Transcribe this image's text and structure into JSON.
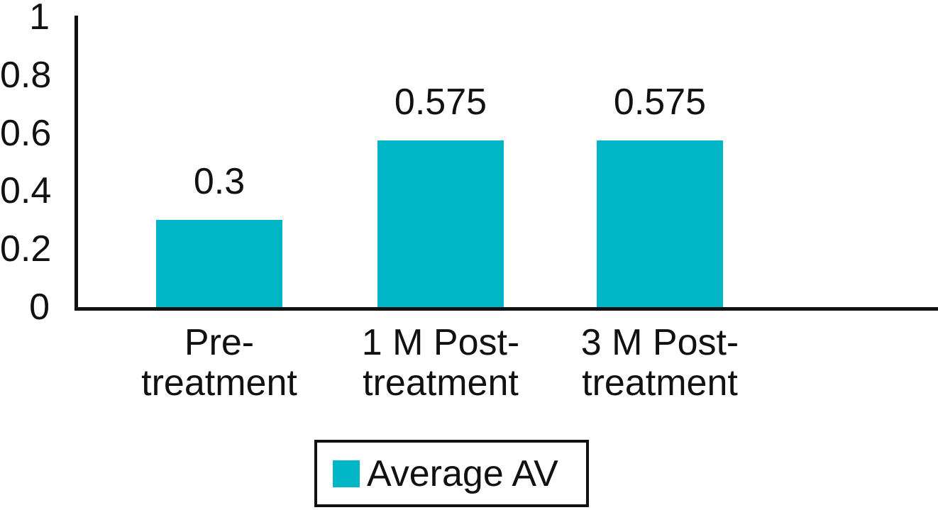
{
  "chart_data": {
    "type": "bar",
    "title": "",
    "xlabel": "",
    "ylabel": "",
    "categories": [
      "Pre-\ntreatment",
      "1 M Post-\ntreatment",
      "3 M Post-\ntreatment"
    ],
    "values": [
      0.3,
      0.575,
      0.575
    ],
    "data_labels": [
      "0.3",
      "0.575",
      "0.575"
    ],
    "ylim": [
      0,
      1
    ],
    "grid": false,
    "y_ticks": [
      {
        "label": "1",
        "value": 1
      },
      {
        "label": "0.8",
        "value": 0.8
      },
      {
        "label": "0.6",
        "value": 0.6
      },
      {
        "label": "0.4",
        "value": 0.4
      },
      {
        "label": "0.2",
        "value": 0.2
      },
      {
        "label": "0",
        "value": 0
      }
    ],
    "legend_position": "bottom",
    "legend": [
      {
        "label": "Average AV",
        "color": "#00B5C5"
      }
    ],
    "colors": {
      "bar": "#00B5C5",
      "axis": "#111111",
      "text": "#111111",
      "legend_border": "#111111",
      "background": "#ffffff"
    }
  }
}
